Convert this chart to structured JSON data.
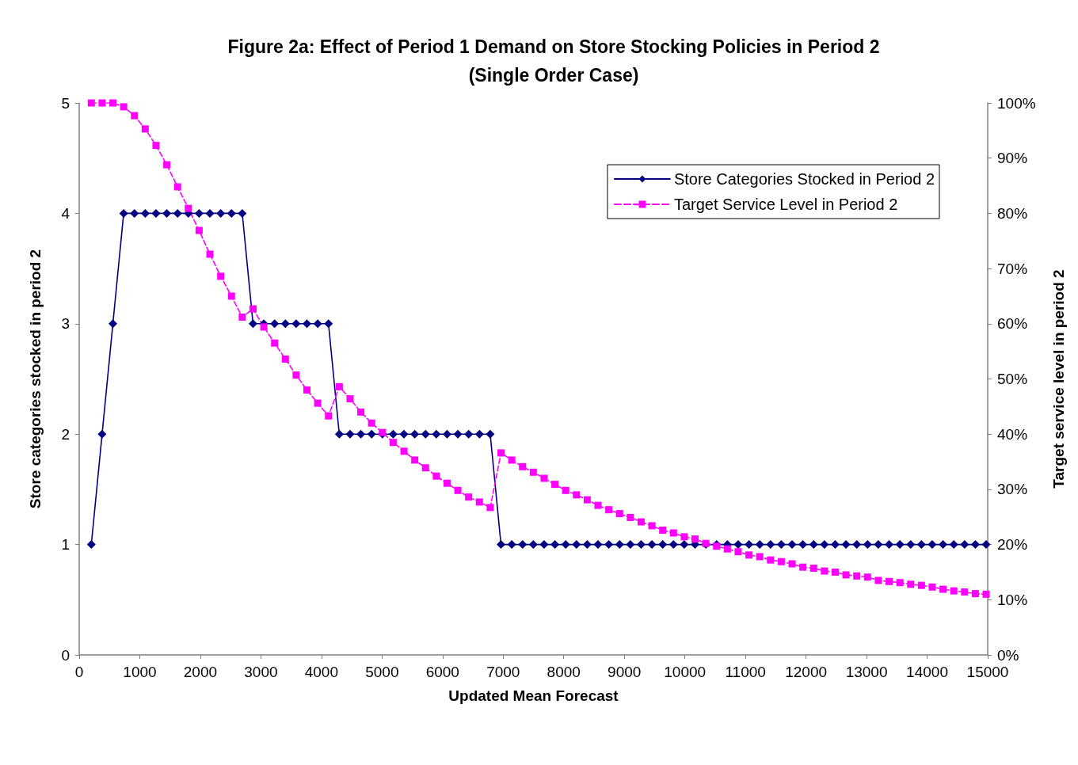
{
  "chart_data": {
    "type": "line",
    "title": "Figure 2a: Effect of Period 1 Demand on Store Stocking Policies in Period 2\n(Single Order Case)",
    "xlabel": "Updated Mean Forecast",
    "ylabel": "Store categories stocked in period 2",
    "y2label": "Target service level in period 2",
    "x": [
      200,
      378,
      556,
      734,
      912,
      1090,
      1268,
      1446,
      1624,
      1802,
      1980,
      2158,
      2336,
      2514,
      2692,
      2870,
      3048,
      3226,
      3404,
      3582,
      3760,
      3938,
      4116,
      4294,
      4472,
      4650,
      4828,
      5006,
      5184,
      5362,
      5540,
      5718,
      5896,
      6074,
      6252,
      6430,
      6608,
      6786,
      6964,
      7142,
      7320,
      7498,
      7676,
      7854,
      8032,
      8210,
      8388,
      8566,
      8744,
      8922,
      9100,
      9278,
      9456,
      9634,
      9812,
      9990,
      10168,
      10346,
      10524,
      10702,
      10880,
      11058,
      11236,
      11414,
      11592,
      11770,
      11948,
      12126,
      12304,
      12482,
      12660,
      12838,
      13016,
      13194,
      13372,
      13550,
      13728,
      13906,
      14084,
      14262,
      14440,
      14618,
      14796,
      14974
    ],
    "series": [
      {
        "name": "Store Categories Stocked in Period 2",
        "color": "#000080",
        "marker": "diamond",
        "line_style": "solid",
        "values": [
          1,
          2,
          3,
          4,
          4,
          4,
          4,
          4,
          4,
          4,
          4,
          4,
          4,
          4,
          4,
          3,
          3,
          3,
          3,
          3,
          3,
          3,
          3,
          2,
          2,
          2,
          2,
          2,
          2,
          2,
          2,
          2,
          2,
          2,
          2,
          2,
          2,
          2,
          1,
          1,
          1,
          1,
          1,
          1,
          1,
          1,
          1,
          1,
          1,
          1,
          1,
          1,
          1,
          1,
          1,
          1,
          1,
          1,
          1,
          1,
          1,
          1,
          1,
          1,
          1,
          1,
          1,
          1,
          1,
          1,
          1,
          1,
          1,
          1,
          1,
          1,
          1,
          1,
          1,
          1,
          1,
          1,
          1,
          1
        ]
      },
      {
        "name": "Target Service Level in Period 2",
        "color": "#ff00ff",
        "marker": "square",
        "line_style": "dashed",
        "axis": "y2",
        "values": [
          100,
          100,
          100,
          99.3,
          97.7,
          95.3,
          92.3,
          88.8,
          84.8,
          80.9,
          76.9,
          72.6,
          68.6,
          65.0,
          61.2,
          62.7,
          59.4,
          56.5,
          53.6,
          50.7,
          48.0,
          45.6,
          43.3,
          48.6,
          46.4,
          44.0,
          42.0,
          40.3,
          38.5,
          36.9,
          35.3,
          33.9,
          32.4,
          31.1,
          29.8,
          28.6,
          27.7,
          26.7,
          36.6,
          35.3,
          34.1,
          33.1,
          32.0,
          30.9,
          29.8,
          29.0,
          28.1,
          27.1,
          26.3,
          25.6,
          24.9,
          24.1,
          23.4,
          22.6,
          22.1,
          21.4,
          21.0,
          20.2,
          19.7,
          19.2,
          18.7,
          18.1,
          17.8,
          17.2,
          16.9,
          16.5,
          15.9,
          15.7,
          15.2,
          15.0,
          14.5,
          14.3,
          14.1,
          13.5,
          13.3,
          13.1,
          12.8,
          12.6,
          12.3,
          11.9,
          11.6,
          11.4,
          11.1,
          11.0
        ]
      }
    ],
    "xlim": [
      0,
      15000
    ],
    "xticks": [
      0,
      1000,
      2000,
      3000,
      4000,
      5000,
      6000,
      7000,
      8000,
      9000,
      10000,
      11000,
      12000,
      13000,
      14000,
      15000
    ],
    "ylim": [
      0,
      5
    ],
    "yticks": [
      0,
      1,
      2,
      3,
      4,
      5
    ],
    "y2lim": [
      0,
      100
    ],
    "y2ticks": [
      {
        "value": 0,
        "label": "0%"
      },
      {
        "value": 10,
        "label": "10%"
      },
      {
        "value": 20,
        "label": "20%"
      },
      {
        "value": 30,
        "label": "30%"
      },
      {
        "value": 40,
        "label": "40%"
      },
      {
        "value": 50,
        "label": "50%"
      },
      {
        "value": 60,
        "label": "60%"
      },
      {
        "value": 70,
        "label": "70%"
      },
      {
        "value": 80,
        "label": "80%"
      },
      {
        "value": 90,
        "label": "90%"
      },
      {
        "value": 100,
        "label": "100%"
      }
    ],
    "grid": false,
    "legend": "top right"
  }
}
